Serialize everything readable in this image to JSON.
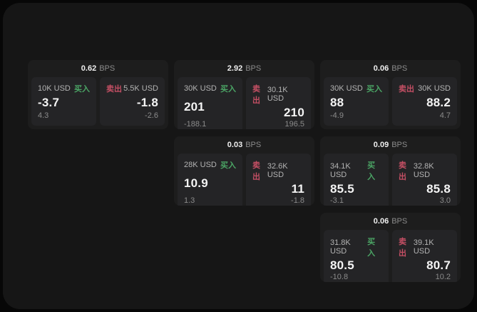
{
  "theme": {
    "outer_bg": "#070707",
    "window_bg": "#161616",
    "card_bg": "#1d1d1d",
    "panel_bg": "#242426",
    "buy_color": "#4ba565",
    "sell_color": "#c44f64",
    "primary_text": "#f4f4f4",
    "secondary_text": "#8b8b8b"
  },
  "labels": {
    "bps_suffix": "BPS",
    "buy": "买入",
    "sell": "卖出"
  },
  "cards": [
    {
      "row": 1,
      "col": 1,
      "bps": "0.62",
      "buy": {
        "amount": "10K USD",
        "price": "-3.7",
        "delta": "4.3"
      },
      "sell": {
        "amount": "5.5K USD",
        "price": "-1.8",
        "delta": "-2.6"
      }
    },
    {
      "row": 1,
      "col": 2,
      "bps": "2.92",
      "buy": {
        "amount": "30K USD",
        "price": "201",
        "delta": "-188.1"
      },
      "sell": {
        "amount": "30.1K USD",
        "price": "210",
        "delta": "196.5"
      }
    },
    {
      "row": 1,
      "col": 3,
      "bps": "0.06",
      "buy": {
        "amount": "30K USD",
        "price": "88",
        "delta": "-4.9"
      },
      "sell": {
        "amount": "30K USD",
        "price": "88.2",
        "delta": "4.7"
      }
    },
    {
      "row": 2,
      "col": 2,
      "bps": "0.03",
      "buy": {
        "amount": "28K USD",
        "price": "10.9",
        "delta": "1.3"
      },
      "sell": {
        "amount": "32.6K USD",
        "price": "11",
        "delta": "-1.8"
      }
    },
    {
      "row": 2,
      "col": 3,
      "bps": "0.09",
      "buy": {
        "amount": "34.1K USD",
        "price": "85.5",
        "delta": "-3.1"
      },
      "sell": {
        "amount": "32.8K USD",
        "price": "85.8",
        "delta": "3.0"
      }
    },
    {
      "row": 3,
      "col": 3,
      "bps": "0.06",
      "buy": {
        "amount": "31.8K USD",
        "price": "80.5",
        "delta": "-10.8"
      },
      "sell": {
        "amount": "39.1K USD",
        "price": "80.7",
        "delta": "10.2"
      }
    }
  ]
}
